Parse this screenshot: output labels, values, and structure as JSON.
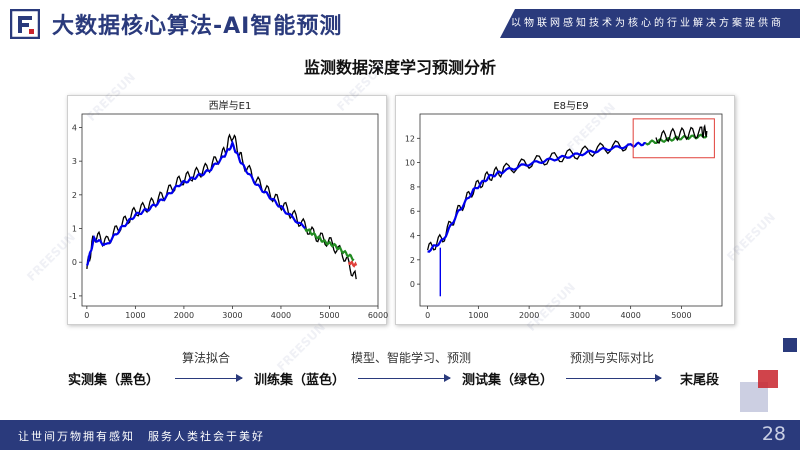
{
  "header": {
    "title": "大数据核心算法-AI智能预测",
    "banner": "以物联网感知技术为核心的行业解决方案提供商"
  },
  "subtitle": "监测数据深度学习预测分析",
  "chart_data": [
    {
      "type": "line",
      "title": "西岸与E1",
      "xlim": [
        -100,
        6000
      ],
      "ylim": [
        -1.3,
        4.4
      ],
      "x_ticks": [
        0,
        1000,
        2000,
        3000,
        4000,
        5000,
        6000
      ],
      "y_ticks": [
        -1,
        0,
        1,
        2,
        3,
        4
      ],
      "series": [
        {
          "color": "#000000",
          "x": [
            0,
            150,
            400,
            700,
            1000,
            1300,
            1600,
            1900,
            2200,
            2500,
            2800,
            3000,
            3200,
            3500,
            3800,
            4100,
            4400,
            4700,
            5000,
            5300,
            5550
          ],
          "y": [
            -0.2,
            0.8,
            0.6,
            1.1,
            1.5,
            1.7,
            2.0,
            2.4,
            2.6,
            2.8,
            3.2,
            3.8,
            3.0,
            2.4,
            2.0,
            1.6,
            1.2,
            0.8,
            0.6,
            0.2,
            -0.5
          ]
        },
        {
          "color": "#0000ee",
          "x": [
            0,
            150,
            400,
            700,
            1000,
            1300,
            1600,
            1900,
            2200,
            2500,
            2800,
            3000,
            3200,
            3500,
            3800,
            4100,
            4500
          ],
          "y": [
            -0.1,
            0.7,
            0.5,
            1.0,
            1.4,
            1.6,
            1.9,
            2.3,
            2.5,
            2.7,
            3.1,
            3.5,
            2.9,
            2.3,
            1.9,
            1.5,
            1.0
          ]
        },
        {
          "color": "#228b22",
          "x": [
            4500,
            4700,
            4900,
            5100,
            5300,
            5500
          ],
          "y": [
            1.0,
            0.8,
            0.6,
            0.5,
            0.3,
            0.1
          ]
        },
        {
          "color": "#e0403a",
          "x": [
            5400,
            5550
          ],
          "y": [
            0.0,
            -0.1
          ]
        }
      ]
    },
    {
      "type": "line",
      "title": "E8与E9",
      "xlim": [
        -150,
        5800
      ],
      "ylim": [
        -1.8,
        14.0
      ],
      "x_ticks": [
        0,
        1000,
        2000,
        3000,
        4000,
        5000
      ],
      "y_ticks": [
        0,
        2,
        4,
        6,
        8,
        10,
        12
      ],
      "series": [
        {
          "color": "#000000",
          "x": [
            0,
            300,
            600,
            900,
            1200,
            1500,
            2000,
            2500,
            3000,
            3500,
            4000
          ],
          "y": [
            2.8,
            3.8,
            6.0,
            7.8,
            8.9,
            9.4,
            10.0,
            10.4,
            10.8,
            11.2,
            11.5
          ]
        },
        {
          "color": "#0000ee",
          "x": [
            0,
            300,
            600,
            900,
            1200,
            1500,
            2000,
            2500,
            3000,
            3500,
            4000,
            4300
          ],
          "y": [
            2.7,
            3.6,
            5.9,
            7.7,
            8.8,
            9.3,
            9.9,
            10.3,
            10.7,
            11.1,
            11.4,
            11.6
          ]
        },
        {
          "color": "#228b22",
          "x": [
            4300,
            4600,
            4900,
            5200,
            5500
          ],
          "y": [
            11.6,
            11.8,
            12.0,
            12.1,
            12.2
          ]
        },
        {
          "color": "#000000",
          "x": [
            4500,
            4800,
            5100,
            5400,
            5500
          ],
          "y": [
            12.0,
            12.3,
            12.4,
            12.5,
            12.6
          ]
        }
      ]
    }
  ],
  "flow": {
    "node1": "实测集（黑色）",
    "node2": "训练集（蓝色）",
    "node3": "测试集（绿色）",
    "node4": "末尾段",
    "label1": "算法拟合",
    "label2": "模型、智能学习、预测",
    "label3": "预测与实际对比"
  },
  "footer": {
    "slogan": "让世间万物拥有感知　服务人类社会于美好",
    "page": "28"
  },
  "colors": {
    "brand": "#2a3a7c",
    "accent": "#c8232c"
  }
}
